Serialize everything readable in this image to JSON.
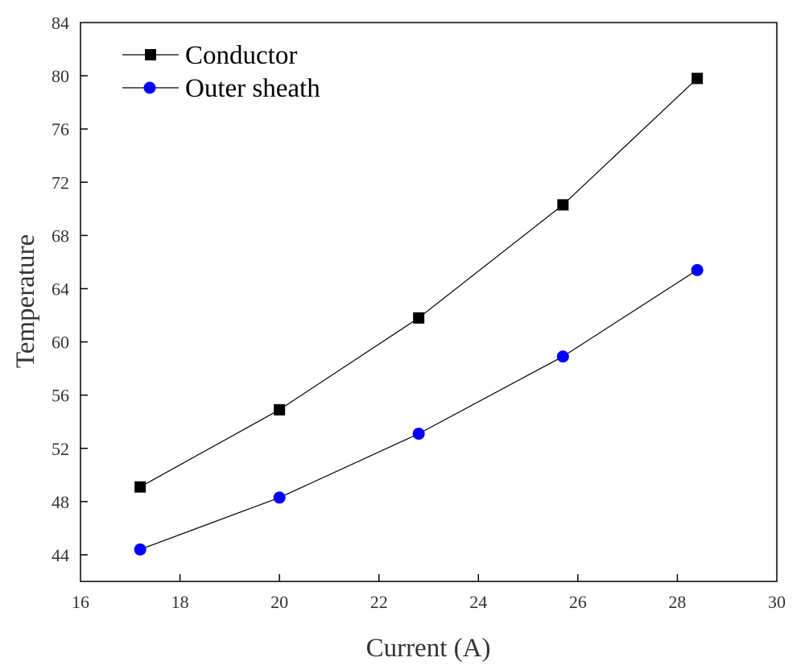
{
  "chart_data": {
    "type": "line",
    "title": "",
    "xlabel": "Current (A)",
    "ylabel": "Temperature",
    "xlim": [
      16,
      30
    ],
    "ylim": [
      42,
      84
    ],
    "xticks": [
      16,
      18,
      20,
      22,
      24,
      26,
      28,
      30
    ],
    "xtick_labels": [
      "16",
      "18",
      "20",
      "22",
      "24",
      "26",
      "28",
      "30"
    ],
    "yticks": [
      44,
      48,
      52,
      56,
      60,
      64,
      68,
      72,
      76,
      80,
      84
    ],
    "ytick_labels": [
      "44",
      "48",
      "52",
      "56",
      "60",
      "64",
      "68",
      "72",
      "76",
      "80",
      "84"
    ],
    "grid": false,
    "legend_position": "top-left",
    "series": [
      {
        "name": "Conductor",
        "marker": "square",
        "color": "#000000",
        "line_color": "#000000",
        "x": [
          17.2,
          20.0,
          22.8,
          25.7,
          28.4
        ],
        "y": [
          49.1,
          54.9,
          61.8,
          70.3,
          79.8
        ]
      },
      {
        "name": "Outer sheath",
        "marker": "circle",
        "color": "#0000ff",
        "line_color": "#000000",
        "x": [
          17.2,
          20.0,
          22.8,
          25.7,
          28.4
        ],
        "y": [
          44.4,
          48.3,
          53.1,
          58.9,
          65.4
        ]
      }
    ]
  }
}
